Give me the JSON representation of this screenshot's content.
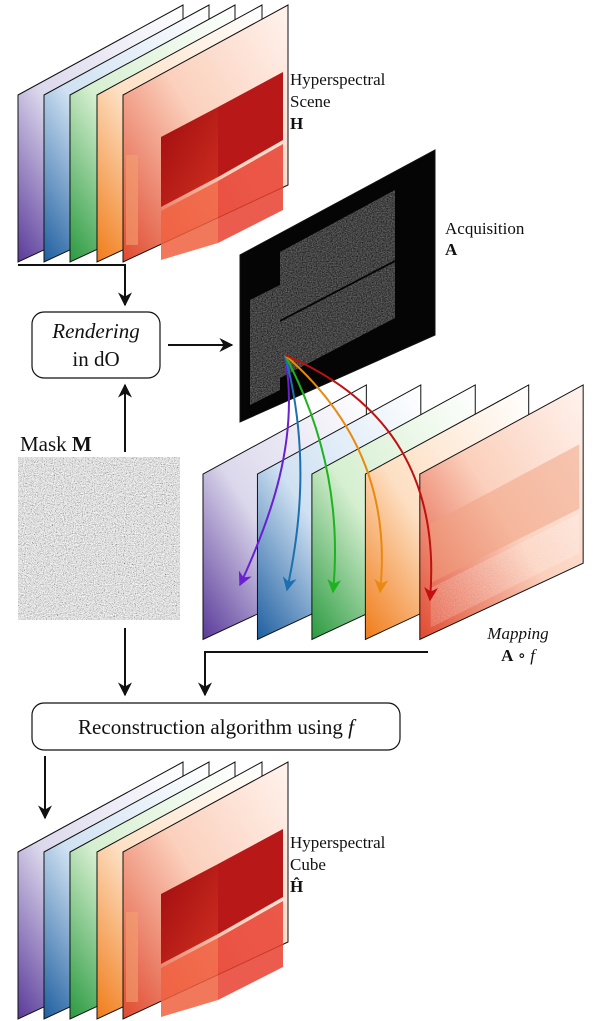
{
  "scene": {
    "lines": [
      "Hyperspectral",
      "Scene"
    ],
    "symbol": "H"
  },
  "acquisition": {
    "label": "Acquisition",
    "symbol": "A"
  },
  "rendering": {
    "method": "Rendering",
    "place": "in dO"
  },
  "mask": {
    "label": "Mask",
    "symbol": "M"
  },
  "mapping": {
    "label": "Mapping",
    "symbol": "A",
    "operator": "∘",
    "function": "f"
  },
  "reconstruction": {
    "text": "Reconstruction algorithm using",
    "function": "f"
  },
  "cube": {
    "lines": [
      "Hyperspectral",
      "Cube"
    ],
    "symbol": "Ĥ"
  }
}
